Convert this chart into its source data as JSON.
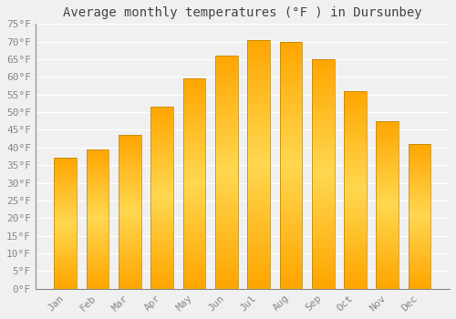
{
  "title": "Average monthly temperatures (°F ) in Dursunbey",
  "months": [
    "Jan",
    "Feb",
    "Mar",
    "Apr",
    "May",
    "Jun",
    "Jul",
    "Aug",
    "Sep",
    "Oct",
    "Nov",
    "Dec"
  ],
  "values": [
    37,
    39.5,
    43.5,
    51.5,
    59.5,
    66,
    70.5,
    70,
    65,
    56,
    47.5,
    41
  ],
  "bar_color_main": "#FFA500",
  "bar_color_light": "#FFD070",
  "ylim": [
    0,
    75
  ],
  "yticks": [
    0,
    5,
    10,
    15,
    20,
    25,
    30,
    35,
    40,
    45,
    50,
    55,
    60,
    65,
    70,
    75
  ],
  "ytick_labels": [
    "0°F",
    "5°F",
    "10°F",
    "15°F",
    "20°F",
    "25°F",
    "30°F",
    "35°F",
    "40°F",
    "45°F",
    "50°F",
    "55°F",
    "60°F",
    "65°F",
    "70°F",
    "75°F"
  ],
  "background_color": "#F0F0F0",
  "grid_color": "#FFFFFF",
  "title_fontsize": 10,
  "tick_fontsize": 8,
  "bar_edge_color": "#B8860B",
  "bar_width": 0.7
}
